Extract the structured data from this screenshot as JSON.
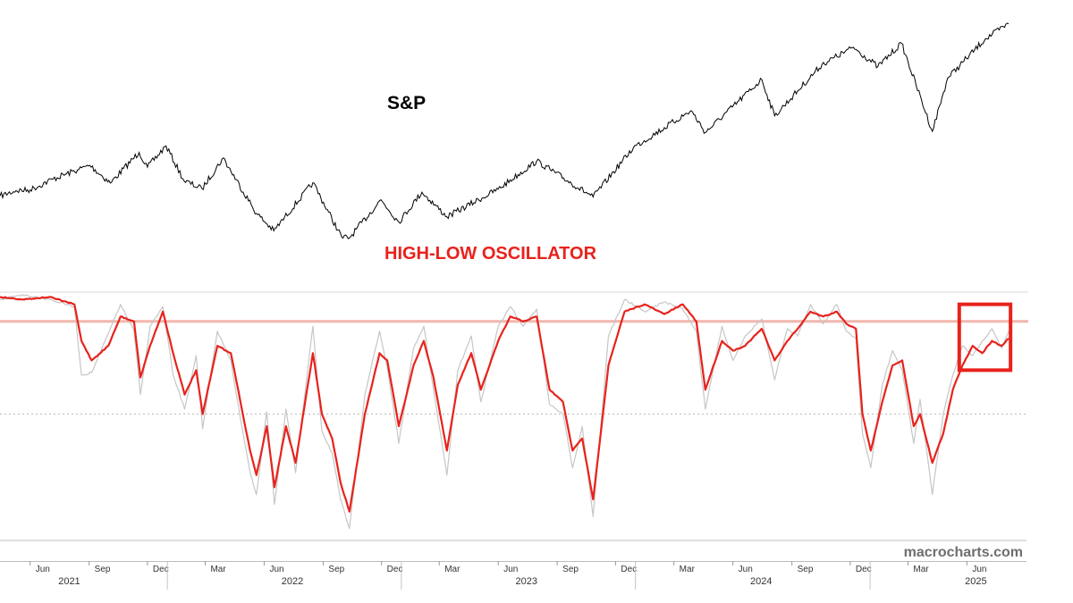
{
  "chart_data": [
    {
      "type": "line",
      "title": "",
      "label": "S&P",
      "xlabel": "",
      "ylabel": "",
      "grid": false,
      "x_range": [
        "2021-04-15",
        "2025-08-05"
      ],
      "series": [
        {
          "name": "S&P",
          "color": "#000000",
          "points": [
            [
              "2021-04-15",
              4130
            ],
            [
              "2021-05-10",
              4200
            ],
            [
              "2021-06-01",
              4210
            ],
            [
              "2021-07-07",
              4355
            ],
            [
              "2021-08-16",
              4480
            ],
            [
              "2021-09-02",
              4535
            ],
            [
              "2021-10-04",
              4300
            ],
            [
              "2021-11-18",
              4705
            ],
            [
              "2021-12-01",
              4510
            ],
            [
              "2021-12-30",
              4790
            ],
            [
              "2022-01-27",
              4330
            ],
            [
              "2022-02-24",
              4225
            ],
            [
              "2022-03-29",
              4630
            ],
            [
              "2022-05-20",
              3900
            ],
            [
              "2022-06-16",
              3670
            ],
            [
              "2022-08-16",
              4305
            ],
            [
              "2022-09-30",
              3585
            ],
            [
              "2022-10-12",
              3577
            ],
            [
              "2022-11-30",
              4080
            ],
            [
              "2022-12-28",
              3785
            ],
            [
              "2023-02-02",
              4180
            ],
            [
              "2023-03-13",
              3855
            ],
            [
              "2023-06-01",
              4220
            ],
            [
              "2023-07-31",
              4590
            ],
            [
              "2023-10-27",
              4117
            ],
            [
              "2023-12-29",
              4770
            ],
            [
              "2024-03-28",
              5255
            ],
            [
              "2024-04-19",
              4967
            ],
            [
              "2024-07-16",
              5667
            ],
            [
              "2024-08-05",
              5186
            ],
            [
              "2024-10-18",
              5865
            ],
            [
              "2024-12-06",
              6090
            ],
            [
              "2025-01-13",
              5836
            ],
            [
              "2025-02-19",
              6144
            ],
            [
              "2025-04-08",
              4982
            ],
            [
              "2025-05-02",
              5686
            ],
            [
              "2025-06-30",
              6205
            ],
            [
              "2025-08-05",
              6400
            ]
          ]
        }
      ]
    },
    {
      "type": "line",
      "title": "",
      "label": "HIGH-LOW OSCILLATOR",
      "xlabel": "",
      "ylabel": "",
      "grid": false,
      "y_range": [
        0,
        100
      ],
      "reference_lines": [
        {
          "value": 100,
          "color": "#d8d8d8",
          "style": "solid"
        },
        {
          "value": 88,
          "color": "#f2b6ad",
          "style": "solid"
        },
        {
          "value": 50,
          "color": "#bbbbbb",
          "style": "dotted"
        }
      ],
      "highlight_box": {
        "x_from": "2025-05-20",
        "x_to": "2025-08-08",
        "y_from": 68,
        "y_to": 95,
        "color": "#e8221c"
      },
      "series": [
        {
          "name": "Oscillator (smoothed)",
          "color": "#e8221c",
          "points": [
            [
              "2021-04-15",
              98
            ],
            [
              "2021-05-20",
              97
            ],
            [
              "2021-07-01",
              98
            ],
            [
              "2021-08-09",
              95
            ],
            [
              "2021-08-20",
              80
            ],
            [
              "2021-09-05",
              72
            ],
            [
              "2021-10-01",
              78
            ],
            [
              "2021-10-20",
              90
            ],
            [
              "2021-11-10",
              88
            ],
            [
              "2021-11-20",
              65
            ],
            [
              "2021-12-05",
              78
            ],
            [
              "2021-12-25",
              92
            ],
            [
              "2022-01-10",
              75
            ],
            [
              "2022-01-28",
              58
            ],
            [
              "2022-02-15",
              68
            ],
            [
              "2022-02-25",
              50
            ],
            [
              "2022-03-20",
              78
            ],
            [
              "2022-04-10",
              75
            ],
            [
              "2022-04-25",
              55
            ],
            [
              "2022-05-10",
              35
            ],
            [
              "2022-05-20",
              25
            ],
            [
              "2022-06-05",
              45
            ],
            [
              "2022-06-17",
              20
            ],
            [
              "2022-07-05",
              45
            ],
            [
              "2022-07-20",
              30
            ],
            [
              "2022-08-16",
              75
            ],
            [
              "2022-08-30",
              50
            ],
            [
              "2022-09-15",
              40
            ],
            [
              "2022-09-28",
              22
            ],
            [
              "2022-10-12",
              10
            ],
            [
              "2022-11-05",
              50
            ],
            [
              "2022-11-28",
              75
            ],
            [
              "2022-12-10",
              72
            ],
            [
              "2022-12-28",
              45
            ],
            [
              "2023-01-20",
              70
            ],
            [
              "2023-02-05",
              80
            ],
            [
              "2023-02-20",
              65
            ],
            [
              "2023-03-13",
              35
            ],
            [
              "2023-03-30",
              62
            ],
            [
              "2023-04-20",
              75
            ],
            [
              "2023-05-05",
              60
            ],
            [
              "2023-06-01",
              80
            ],
            [
              "2023-06-20",
              90
            ],
            [
              "2023-07-10",
              88
            ],
            [
              "2023-07-31",
              90
            ],
            [
              "2023-08-20",
              60
            ],
            [
              "2023-09-10",
              55
            ],
            [
              "2023-09-25",
              35
            ],
            [
              "2023-10-10",
              40
            ],
            [
              "2023-10-27",
              15
            ],
            [
              "2023-11-20",
              70
            ],
            [
              "2023-12-15",
              92
            ],
            [
              "2024-01-15",
              95
            ],
            [
              "2024-02-15",
              91
            ],
            [
              "2024-03-15",
              95
            ],
            [
              "2024-04-05",
              88
            ],
            [
              "2024-04-19",
              60
            ],
            [
              "2024-05-15",
              80
            ],
            [
              "2024-06-01",
              76
            ],
            [
              "2024-06-20",
              78
            ],
            [
              "2024-07-16",
              85
            ],
            [
              "2024-08-05",
              72
            ],
            [
              "2024-08-25",
              80
            ],
            [
              "2024-09-10",
              85
            ],
            [
              "2024-09-30",
              92
            ],
            [
              "2024-10-20",
              90
            ],
            [
              "2024-11-10",
              92
            ],
            [
              "2024-11-25",
              87
            ],
            [
              "2024-12-10",
              85
            ],
            [
              "2024-12-20",
              50
            ],
            [
              "2025-01-02",
              35
            ],
            [
              "2025-01-20",
              55
            ],
            [
              "2025-02-05",
              70
            ],
            [
              "2025-02-20",
              72
            ],
            [
              "2025-03-10",
              45
            ],
            [
              "2025-03-20",
              50
            ],
            [
              "2025-04-08",
              30
            ],
            [
              "2025-04-25",
              42
            ],
            [
              "2025-05-10",
              60
            ],
            [
              "2025-05-25",
              70
            ],
            [
              "2025-06-10",
              78
            ],
            [
              "2025-06-25",
              75
            ],
            [
              "2025-07-10",
              80
            ],
            [
              "2025-07-25",
              78
            ],
            [
              "2025-08-05",
              81
            ]
          ]
        },
        {
          "name": "Oscillator (raw)",
          "color": "#c6c6c6",
          "points": [
            [
              "2021-04-15",
              97
            ],
            [
              "2021-05-20",
              99
            ],
            [
              "2021-07-01",
              97
            ],
            [
              "2021-08-09",
              94
            ],
            [
              "2021-08-20",
              66
            ],
            [
              "2021-09-05",
              67
            ],
            [
              "2021-10-01",
              83
            ],
            [
              "2021-10-20",
              95
            ],
            [
              "2021-11-10",
              84
            ],
            [
              "2021-11-20",
              58
            ],
            [
              "2021-12-05",
              86
            ],
            [
              "2021-12-25",
              94
            ],
            [
              "2022-01-10",
              66
            ],
            [
              "2022-01-28",
              52
            ],
            [
              "2022-02-15",
              74
            ],
            [
              "2022-02-25",
              44
            ],
            [
              "2022-03-20",
              84
            ],
            [
              "2022-04-10",
              72
            ],
            [
              "2022-04-25",
              48
            ],
            [
              "2022-05-10",
              26
            ],
            [
              "2022-05-20",
              17
            ],
            [
              "2022-06-05",
              51
            ],
            [
              "2022-06-17",
              13
            ],
            [
              "2022-07-05",
              52
            ],
            [
              "2022-07-20",
              26
            ],
            [
              "2022-08-16",
              86
            ],
            [
              "2022-08-30",
              43
            ],
            [
              "2022-09-15",
              34
            ],
            [
              "2022-09-28",
              15
            ],
            [
              "2022-10-12",
              3
            ],
            [
              "2022-11-05",
              58
            ],
            [
              "2022-11-28",
              84
            ],
            [
              "2022-12-10",
              69
            ],
            [
              "2022-12-28",
              38
            ],
            [
              "2023-01-20",
              77
            ],
            [
              "2023-02-05",
              86
            ],
            [
              "2023-02-20",
              60
            ],
            [
              "2023-03-13",
              25
            ],
            [
              "2023-03-30",
              68
            ],
            [
              "2023-04-20",
              82
            ],
            [
              "2023-05-05",
              55
            ],
            [
              "2023-06-01",
              86
            ],
            [
              "2023-06-20",
              94
            ],
            [
              "2023-07-10",
              86
            ],
            [
              "2023-07-31",
              93
            ],
            [
              "2023-08-20",
              54
            ],
            [
              "2023-09-10",
              50
            ],
            [
              "2023-09-25",
              28
            ],
            [
              "2023-10-10",
              45
            ],
            [
              "2023-10-27",
              8
            ],
            [
              "2023-11-20",
              82
            ],
            [
              "2023-12-15",
              97
            ],
            [
              "2024-01-15",
              92
            ],
            [
              "2024-02-15",
              96
            ],
            [
              "2024-03-15",
              93
            ],
            [
              "2024-04-05",
              84
            ],
            [
              "2024-04-19",
              52
            ],
            [
              "2024-05-15",
              86
            ],
            [
              "2024-06-01",
              72
            ],
            [
              "2024-06-20",
              82
            ],
            [
              "2024-07-16",
              89
            ],
            [
              "2024-08-05",
              64
            ],
            [
              "2024-08-25",
              85
            ],
            [
              "2024-09-10",
              82
            ],
            [
              "2024-09-30",
              95
            ],
            [
              "2024-10-20",
              87
            ],
            [
              "2024-11-10",
              95
            ],
            [
              "2024-11-25",
              84
            ],
            [
              "2024-12-10",
              81
            ],
            [
              "2024-12-20",
              42
            ],
            [
              "2025-01-02",
              28
            ],
            [
              "2025-01-20",
              62
            ],
            [
              "2025-02-05",
              76
            ],
            [
              "2025-02-20",
              68
            ],
            [
              "2025-03-10",
              38
            ],
            [
              "2025-03-20",
              56
            ],
            [
              "2025-04-08",
              17
            ],
            [
              "2025-04-25",
              50
            ],
            [
              "2025-05-10",
              66
            ],
            [
              "2025-05-25",
              78
            ],
            [
              "2025-06-10",
              74
            ],
            [
              "2025-06-25",
              80
            ],
            [
              "2025-07-10",
              85
            ],
            [
              "2025-07-25",
              77
            ],
            [
              "2025-08-05",
              84
            ]
          ]
        }
      ]
    }
  ],
  "x_axis": {
    "month_ticks": [
      {
        "label": "Jun",
        "date": "2021-06-01"
      },
      {
        "label": "Sep",
        "date": "2021-09-01"
      },
      {
        "label": "Dec",
        "date": "2021-12-01"
      },
      {
        "label": "Mar",
        "date": "2022-03-01"
      },
      {
        "label": "Jun",
        "date": "2022-06-01"
      },
      {
        "label": "Sep",
        "date": "2022-09-01"
      },
      {
        "label": "Dec",
        "date": "2022-12-01"
      },
      {
        "label": "Mar",
        "date": "2023-03-01"
      },
      {
        "label": "Jun",
        "date": "2023-06-01"
      },
      {
        "label": "Sep",
        "date": "2023-09-01"
      },
      {
        "label": "Dec",
        "date": "2023-12-01"
      },
      {
        "label": "Mar",
        "date": "2024-03-01"
      },
      {
        "label": "Jun",
        "date": "2024-06-01"
      },
      {
        "label": "Sep",
        "date": "2024-09-01"
      },
      {
        "label": "Dec",
        "date": "2024-12-01"
      },
      {
        "label": "Mar",
        "date": "2025-03-01"
      },
      {
        "label": "Jun",
        "date": "2025-06-01"
      }
    ],
    "year_labels": [
      {
        "label": "2021",
        "date": "2021-08-01"
      },
      {
        "label": "2022",
        "date": "2022-07-15"
      },
      {
        "label": "2023",
        "date": "2023-07-15"
      },
      {
        "label": "2024",
        "date": "2024-07-15"
      },
      {
        "label": "2025",
        "date": "2025-06-15"
      }
    ],
    "year_boundaries": [
      "2022-01-01",
      "2023-01-01",
      "2024-01-01",
      "2025-01-01"
    ]
  },
  "watermark": "macrocharts.com"
}
